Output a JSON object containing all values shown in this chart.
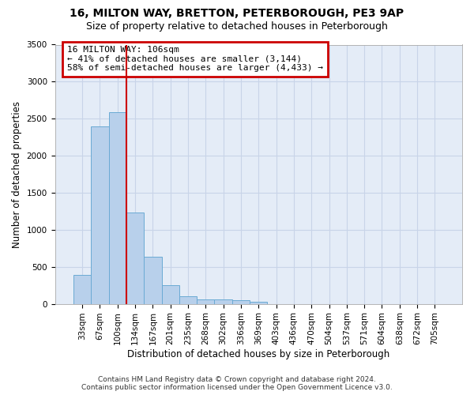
{
  "title_line1": "16, MILTON WAY, BRETTON, PETERBOROUGH, PE3 9AP",
  "title_line2": "Size of property relative to detached houses in Peterborough",
  "xlabel": "Distribution of detached houses by size in Peterborough",
  "ylabel": "Number of detached properties",
  "footer_line1": "Contains HM Land Registry data © Crown copyright and database right 2024.",
  "footer_line2": "Contains public sector information licensed under the Open Government Licence v3.0.",
  "annotation_title": "16 MILTON WAY: 106sqm",
  "annotation_line1": "← 41% of detached houses are smaller (3,144)",
  "annotation_line2": "58% of semi-detached houses are larger (4,433) →",
  "bin_labels": [
    "33sqm",
    "67sqm",
    "100sqm",
    "134sqm",
    "167sqm",
    "201sqm",
    "235sqm",
    "268sqm",
    "302sqm",
    "336sqm",
    "369sqm",
    "403sqm",
    "436sqm",
    "470sqm",
    "504sqm",
    "537sqm",
    "571sqm",
    "604sqm",
    "638sqm",
    "672sqm",
    "705sqm"
  ],
  "bar_values": [
    390,
    2400,
    2590,
    1230,
    640,
    255,
    100,
    60,
    55,
    45,
    30,
    0,
    0,
    0,
    0,
    0,
    0,
    0,
    0,
    0,
    0
  ],
  "bar_color": "#b8d0eb",
  "bar_edge_color": "#6aaad4",
  "vline_x": 2.5,
  "vline_color": "#cc0000",
  "annotation_box_color": "#cc0000",
  "annotation_box_fill": "#ffffff",
  "ylim": [
    0,
    3500
  ],
  "yticks": [
    0,
    500,
    1000,
    1500,
    2000,
    2500,
    3000,
    3500
  ],
  "grid_color": "#c8d4e8",
  "bg_color": "#e4ecf7",
  "title1_fontsize": 10,
  "title2_fontsize": 9,
  "xlabel_fontsize": 8.5,
  "ylabel_fontsize": 8.5,
  "annotation_fontsize": 8,
  "tick_fontsize": 7.5,
  "footer_fontsize": 6.5
}
